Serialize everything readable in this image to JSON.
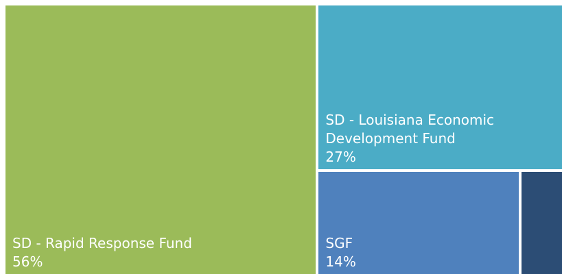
{
  "chart_data": {
    "type": "treemap",
    "categories": [
      "SD - Rapid Response Fund",
      "SD - Louisiana Economic Development Fund",
      "SGF",
      null
    ],
    "values": [
      56,
      27,
      14,
      3
    ],
    "value_labels": [
      "56%",
      "27%",
      "14%",
      null
    ],
    "colors": [
      "#9bbb59",
      "#4bacc6",
      "#4f81bd",
      "#2c4d75"
    ]
  }
}
